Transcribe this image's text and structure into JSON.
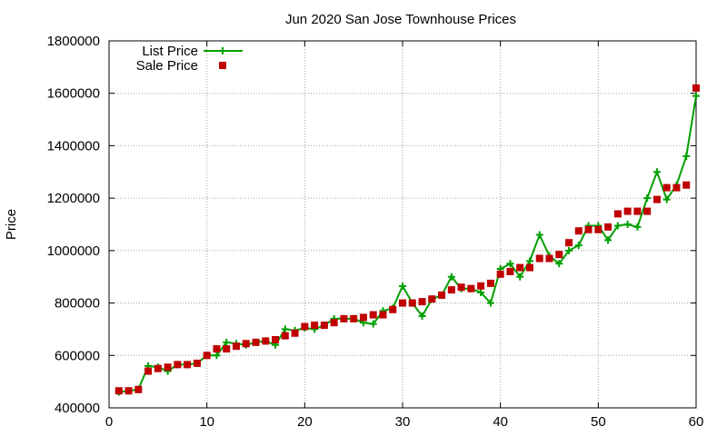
{
  "chart_data": {
    "type": "line",
    "title": "Jun 2020 San Jose Townhouse Prices",
    "xlabel": "",
    "ylabel": "Price",
    "xlim": [
      0,
      60
    ],
    "ylim": [
      400000,
      1800000
    ],
    "x_ticks": [
      "0",
      "10",
      "20",
      "30",
      "40",
      "50",
      "60"
    ],
    "y_ticks": [
      "400000",
      "600000",
      "800000",
      "1000000",
      "1200000",
      "1400000",
      "1600000",
      "1800000"
    ],
    "grid": true,
    "legend_position": "top-left",
    "x": [
      1,
      2,
      3,
      4,
      5,
      6,
      7,
      8,
      9,
      10,
      11,
      12,
      13,
      14,
      15,
      16,
      17,
      18,
      19,
      20,
      21,
      22,
      23,
      24,
      25,
      26,
      27,
      28,
      29,
      30,
      31,
      32,
      33,
      34,
      35,
      36,
      37,
      38,
      39,
      40,
      41,
      42,
      43,
      44,
      45,
      46,
      47,
      48,
      49,
      50,
      51,
      52,
      53,
      54,
      55,
      56,
      57,
      58,
      59,
      60
    ],
    "series": [
      {
        "name": "List Price",
        "color": "#00a000",
        "marker": "plus",
        "line": true,
        "values": [
          460000,
          465000,
          470000,
          560000,
          555000,
          540000,
          565000,
          565000,
          570000,
          600000,
          600000,
          650000,
          645000,
          640000,
          650000,
          655000,
          640000,
          700000,
          695000,
          705000,
          700000,
          715000,
          740000,
          740000,
          740000,
          725000,
          720000,
          770000,
          780000,
          865000,
          800000,
          750000,
          815000,
          830000,
          900000,
          855000,
          855000,
          840000,
          800000,
          930000,
          950000,
          900000,
          960000,
          1060000,
          980000,
          950000,
          1000000,
          1020000,
          1095000,
          1095000,
          1040000,
          1095000,
          1100000,
          1090000,
          1200000,
          1300000,
          1195000,
          1250000,
          1360000,
          1590000
        ]
      },
      {
        "name": "Sale Price",
        "color": "#c00000",
        "marker": "square",
        "line": false,
        "values": [
          465000,
          465000,
          470000,
          540000,
          550000,
          555000,
          565000,
          565000,
          570000,
          600000,
          625000,
          625000,
          635000,
          645000,
          650000,
          655000,
          660000,
          675000,
          685000,
          710000,
          715000,
          715000,
          725000,
          740000,
          740000,
          745000,
          755000,
          755000,
          775000,
          800000,
          800000,
          805000,
          815000,
          830000,
          850000,
          860000,
          855000,
          865000,
          875000,
          910000,
          920000,
          935000,
          935000,
          970000,
          970000,
          985000,
          1030000,
          1075000,
          1080000,
          1080000,
          1090000,
          1140000,
          1150000,
          1150000,
          1150000,
          1195000,
          1240000,
          1240000,
          1250000,
          1620000
        ]
      }
    ]
  }
}
